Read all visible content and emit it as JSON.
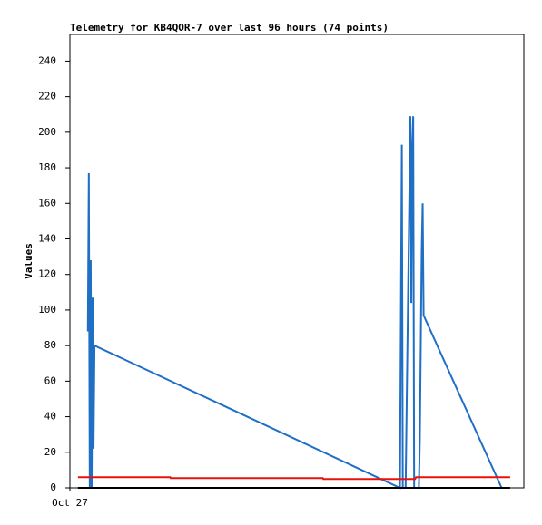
{
  "chart_data": {
    "type": "line",
    "title": "Telemetry for KB4QOR-7 over last 96 hours (74 points)",
    "y_label": "Values",
    "xlim": [
      0,
      96
    ],
    "xticks": [
      {
        "value": 0,
        "label": "Oct 27"
      }
    ],
    "ylim": [
      0,
      255
    ],
    "yticks": [
      0,
      20,
      40,
      60,
      80,
      100,
      120,
      140,
      160,
      180,
      200,
      220,
      240
    ],
    "grid": false,
    "series": [
      {
        "color": "#1f6fc5",
        "x": [
          3.8,
          4.0,
          4.2,
          4.4,
          4.6,
          4.8,
          5.0,
          5.2,
          69.8,
          70.0,
          70.2,
          70.4,
          71.0,
          72.0,
          72.2,
          72.4,
          72.6,
          72.8,
          73.8,
          74.0,
          74.2,
          74.4,
          74.6,
          74.8,
          91.3
        ],
        "values": [
          88,
          177,
          0,
          128,
          0,
          107,
          22,
          80,
          0,
          96,
          193,
          0,
          0,
          209,
          104,
          193,
          209,
          0,
          0,
          27,
          80,
          133,
          160,
          97,
          0
        ]
      },
      {
        "color": "#e8120c",
        "x": [
          1.7,
          21.2,
          21.3,
          53.5,
          53.6,
          73.0,
          73.2,
          93.1
        ],
        "values": [
          6,
          6,
          5.5,
          5.5,
          5,
          5,
          6,
          6
        ]
      },
      {
        "color": "#000000",
        "x": [
          1.7,
          93.1
        ],
        "values": [
          0,
          0
        ]
      }
    ]
  }
}
